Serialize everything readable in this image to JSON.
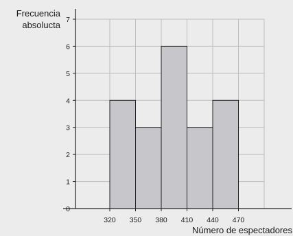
{
  "chart_data": {
    "type": "bar",
    "bin_edges": [
      320,
      350,
      380,
      410,
      440,
      470
    ],
    "values": [
      4,
      3,
      6,
      3,
      4
    ],
    "xlim": [
      280,
      500
    ],
    "ylim": [
      0,
      7
    ],
    "x_ticks": [
      320,
      350,
      380,
      410,
      440,
      470
    ],
    "y_ticks": [
      0,
      1,
      2,
      3,
      4,
      5,
      6,
      7
    ],
    "xlabel": "Número de espectadores",
    "ylabel_lines": [
      "Frecuencia",
      "absolucta"
    ],
    "grid": true,
    "colors": {
      "bar_fill": "#c7c6cb",
      "bar_stroke": "#222222",
      "grid": "#bdbdbd",
      "axis": "#222222"
    }
  }
}
